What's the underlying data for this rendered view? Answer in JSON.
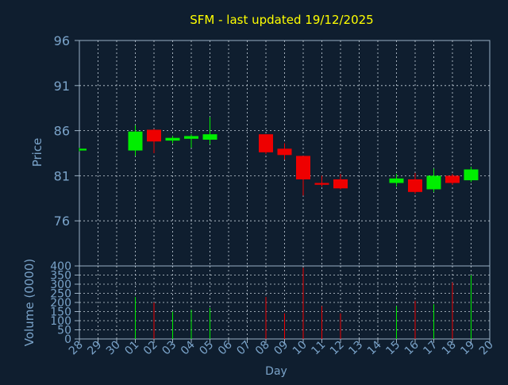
{
  "chart_data": {
    "type": "candlestick",
    "title": "SFM - last updated 19/12/2025",
    "xlabel": "Day",
    "price_panel": {
      "ylabel": "Price",
      "ylim": [
        71,
        96
      ],
      "yticks": [
        96,
        91,
        86,
        81,
        76
      ]
    },
    "volume_panel": {
      "ylabel": "Volume (0000)",
      "ylim": [
        0,
        400
      ],
      "yticks": [
        400,
        350,
        300,
        250,
        200,
        150,
        100,
        50,
        0
      ]
    },
    "categories": [
      "28",
      "29",
      "30",
      "01",
      "02",
      "03",
      "04",
      "05",
      "06",
      "07",
      "08",
      "09",
      "10",
      "11",
      "12",
      "13",
      "14",
      "15",
      "16",
      "17",
      "18",
      "19",
      "20"
    ],
    "candles": [
      {
        "day": "28",
        "open": 83.8,
        "close": 84.0,
        "high": 84.1,
        "low": 83.7,
        "volume": 0
      },
      {
        "day": "01",
        "open": 83.8,
        "close": 85.9,
        "high": 86.6,
        "low": 83.2,
        "volume": 230
      },
      {
        "day": "02",
        "open": 86.1,
        "close": 84.8,
        "high": 86.2,
        "low": 83.5,
        "volume": 200
      },
      {
        "day": "03",
        "open": 84.9,
        "close": 85.2,
        "high": 85.4,
        "low": 84.6,
        "volume": 150
      },
      {
        "day": "04",
        "open": 85.1,
        "close": 85.4,
        "high": 85.6,
        "low": 84.1,
        "volume": 160
      },
      {
        "day": "05",
        "open": 85.0,
        "close": 85.6,
        "high": 87.5,
        "low": 84.5,
        "volume": 170
      },
      {
        "day": "08",
        "open": 85.6,
        "close": 83.6,
        "high": 85.6,
        "low": 83.4,
        "volume": 230
      },
      {
        "day": "09",
        "open": 84.0,
        "close": 83.3,
        "high": 84.6,
        "low": 82.8,
        "volume": 140
      },
      {
        "day": "10",
        "open": 83.2,
        "close": 80.6,
        "high": 83.2,
        "low": 78.8,
        "volume": 390
      },
      {
        "day": "11",
        "open": 80.2,
        "close": 80.0,
        "high": 81.0,
        "low": 79.8,
        "volume": 180
      },
      {
        "day": "12",
        "open": 80.6,
        "close": 79.6,
        "high": 81.2,
        "low": 79.5,
        "volume": 140
      },
      {
        "day": "15",
        "open": 80.2,
        "close": 80.7,
        "high": 81.2,
        "low": 79.8,
        "volume": 180
      },
      {
        "day": "16",
        "open": 80.6,
        "close": 79.2,
        "high": 81.3,
        "low": 79.0,
        "volume": 210
      },
      {
        "day": "17",
        "open": 79.5,
        "close": 81.0,
        "high": 81.8,
        "low": 79.2,
        "volume": 190
      },
      {
        "day": "18",
        "open": 81.0,
        "close": 80.2,
        "high": 81.2,
        "low": 80.0,
        "volume": 310
      },
      {
        "day": "19",
        "open": 80.5,
        "close": 81.7,
        "high": 82.0,
        "low": 80.3,
        "volume": 350
      }
    ],
    "colors": {
      "background": "#0f1e2f",
      "title": "#ffff00",
      "axis_text": "#7aa3c9",
      "axis_line": "#9ab0c4",
      "grid": "#c8d2dc",
      "up": "#00ee00",
      "down": "#ee0000"
    },
    "grid": true
  }
}
